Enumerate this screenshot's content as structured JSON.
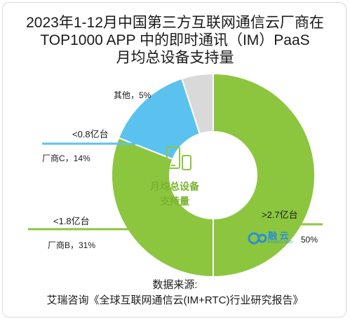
{
  "chart_data": {
    "type": "pie",
    "style": "donut",
    "title_lines": [
      "2023年1-12月中国第三方互联网通信云厂商在",
      "TOP1000 APP 中的即时通讯（IM）PaaS",
      "月均总设备支持量"
    ],
    "center_label_lines": [
      "月均总设备",
      "支持量"
    ],
    "slices": [
      {
        "name": "融云",
        "value": 50,
        "value_label": "50%",
        "range_label": ">2.7亿台",
        "color": "#8cc63f"
      },
      {
        "name": "厂商B",
        "value": 31,
        "value_label": "厂商B，31%",
        "range_label": "<1.8亿台",
        "color": "#8cc63f"
      },
      {
        "name": "厂商C",
        "value": 14,
        "value_label": "厂商C，14%",
        "range_label": "<0.8亿台",
        "color": "#5bc2ef"
      },
      {
        "name": "其他",
        "value": 5,
        "value_label": "其他，5%",
        "range_label": "",
        "color": "#d9d9d9"
      }
    ],
    "legend": "none"
  },
  "logo": {
    "name": "融 云",
    "sub": "RONGCLOUD",
    "icon": "rongcloud-logo-icon"
  },
  "center_icon": "mobile-devices-icon",
  "source": {
    "label": "数据来源:",
    "text": "艾瑞咨询《全球互联网通信云(IM+RTC)行业研究报告》"
  },
  "colors": {
    "green": "#8cc63f",
    "blue": "#5bc2ef",
    "gray": "#d9d9d9",
    "center": "#ffffff"
  }
}
